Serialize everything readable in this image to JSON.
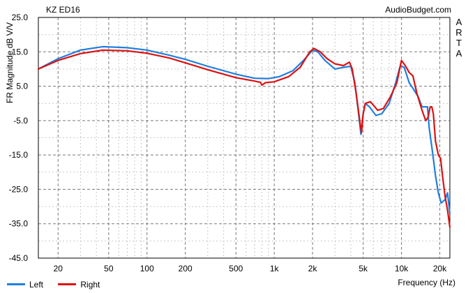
{
  "header": {
    "title": "KZ ED16",
    "brand": "AudioBudget.com",
    "side_text": [
      "A",
      "R",
      "T",
      "A"
    ]
  },
  "chart_data": {
    "type": "line",
    "title": "KZ ED16",
    "ylabel": "FR Magnitude dB V/V",
    "xlabel": "Frequency (Hz)",
    "x_scale": "log",
    "xlim": [
      14,
      24000
    ],
    "ylim": [
      -45,
      25
    ],
    "yticks": [
      25.0,
      15.0,
      5.0,
      -5.0,
      -15.0,
      -25.0,
      -35.0,
      -45.0
    ],
    "ytick_labels": [
      "25.0",
      "15.0",
      "5.0",
      "-5.0",
      "-15.0",
      "-25.0",
      "-35.0",
      "-45.0"
    ],
    "xticks": [
      20,
      50,
      100,
      200,
      500,
      1000,
      2000,
      5000,
      10000,
      20000
    ],
    "xtick_labels": [
      "20",
      "50",
      "100",
      "200",
      "500",
      "1k",
      "2k",
      "5k",
      "10k",
      "20k"
    ],
    "grid": true,
    "legend_position": "bottom-left",
    "series": [
      {
        "name": "Left",
        "color": "#1f7fe0",
        "points": [
          [
            14,
            10
          ],
          [
            20,
            13
          ],
          [
            30,
            15.5
          ],
          [
            45,
            16.5
          ],
          [
            70,
            16.2
          ],
          [
            100,
            15.5
          ],
          [
            150,
            14
          ],
          [
            200,
            12.8
          ],
          [
            300,
            10.8
          ],
          [
            500,
            8.5
          ],
          [
            700,
            7.3
          ],
          [
            900,
            7.2
          ],
          [
            1100,
            7.8
          ],
          [
            1400,
            9.5
          ],
          [
            1700,
            12.5
          ],
          [
            2000,
            15.5
          ],
          [
            2200,
            15
          ],
          [
            2500,
            12.5
          ],
          [
            3000,
            10
          ],
          [
            3500,
            10.5
          ],
          [
            4000,
            10.8
          ],
          [
            4300,
            6
          ],
          [
            4600,
            -3
          ],
          [
            4800,
            -9
          ],
          [
            5000,
            -3
          ],
          [
            5200,
            0
          ],
          [
            5600,
            -1
          ],
          [
            6300,
            -3.5
          ],
          [
            7000,
            -3
          ],
          [
            8000,
            0
          ],
          [
            9000,
            6
          ],
          [
            9800,
            11
          ],
          [
            10500,
            10.5
          ],
          [
            11500,
            6
          ],
          [
            12500,
            4
          ],
          [
            13500,
            2
          ],
          [
            14500,
            -1
          ],
          [
            16000,
            -1
          ],
          [
            16500,
            -7
          ],
          [
            17500,
            -14
          ],
          [
            18500,
            -21
          ],
          [
            19500,
            -26
          ],
          [
            20500,
            -29
          ],
          [
            22000,
            -28
          ],
          [
            23000,
            -26
          ],
          [
            24000,
            -32
          ]
        ]
      },
      {
        "name": "Right",
        "color": "#dd1111",
        "points": [
          [
            14,
            10
          ],
          [
            20,
            12.5
          ],
          [
            30,
            14.5
          ],
          [
            45,
            15.5
          ],
          [
            70,
            15.3
          ],
          [
            100,
            14.6
          ],
          [
            150,
            13.2
          ],
          [
            200,
            11.8
          ],
          [
            300,
            9.8
          ],
          [
            500,
            7.5
          ],
          [
            700,
            6.5
          ],
          [
            780,
            6.1
          ],
          [
            800,
            5.3
          ],
          [
            850,
            6
          ],
          [
            1000,
            6.3
          ],
          [
            1300,
            7.8
          ],
          [
            1600,
            10.5
          ],
          [
            1900,
            15
          ],
          [
            2050,
            16
          ],
          [
            2300,
            15
          ],
          [
            2600,
            13
          ],
          [
            3000,
            11.5
          ],
          [
            3500,
            11
          ],
          [
            3900,
            12
          ],
          [
            4100,
            10
          ],
          [
            4400,
            3
          ],
          [
            4700,
            -5
          ],
          [
            4850,
            -8.5
          ],
          [
            5000,
            -3
          ],
          [
            5200,
            0
          ],
          [
            5700,
            0.5
          ],
          [
            6500,
            -2
          ],
          [
            7200,
            -1.5
          ],
          [
            8200,
            2
          ],
          [
            9200,
            6
          ],
          [
            10000,
            12.5
          ],
          [
            10700,
            11
          ],
          [
            11500,
            9
          ],
          [
            12300,
            8
          ],
          [
            13200,
            3
          ],
          [
            14500,
            -2
          ],
          [
            15500,
            -5
          ],
          [
            16200,
            -4
          ],
          [
            16800,
            -1
          ],
          [
            17300,
            -1
          ],
          [
            17800,
            -3
          ],
          [
            18500,
            -11
          ],
          [
            19500,
            -15
          ],
          [
            20300,
            -16
          ],
          [
            21000,
            -21
          ],
          [
            22000,
            -27
          ],
          [
            23000,
            -31
          ],
          [
            24000,
            -36
          ]
        ]
      }
    ]
  }
}
